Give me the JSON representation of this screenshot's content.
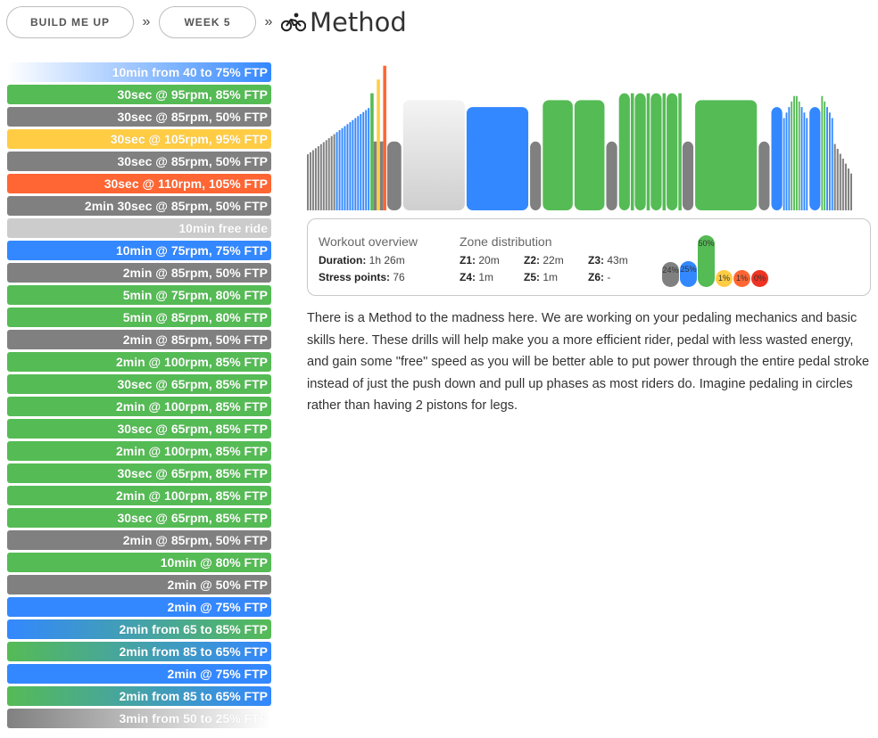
{
  "breadcrumb": {
    "items": [
      "BUILD ME UP",
      "WEEK 5"
    ],
    "separator": "»",
    "title": "Method",
    "title_icon": "cyclist-icon"
  },
  "colors": {
    "gray": "#808080",
    "blue": "#3388ff",
    "green": "#55bb55",
    "yellow": "#ffcc44",
    "orange": "#ff6633",
    "light": "#cccccc"
  },
  "intervals": [
    {
      "label": "10min from 40 to 75% FTP",
      "kind": "grad",
      "from": "#ffffff",
      "to": "#3388ff"
    },
    {
      "label": "30sec @ 95rpm, 85% FTP",
      "kind": "solid",
      "color": "#55bb55"
    },
    {
      "label": "30sec @ 85rpm, 50% FTP",
      "kind": "solid",
      "color": "#808080"
    },
    {
      "label": "30sec @ 105rpm, 95% FTP",
      "kind": "solid",
      "color": "#ffcc44"
    },
    {
      "label": "30sec @ 85rpm, 50% FTP",
      "kind": "solid",
      "color": "#808080"
    },
    {
      "label": "30sec @ 110rpm, 105% FTP",
      "kind": "solid",
      "color": "#ff6633"
    },
    {
      "label": "2min 30sec @ 85rpm, 50% FTP",
      "kind": "solid",
      "color": "#808080"
    },
    {
      "label": "10min free ride",
      "kind": "solid",
      "color": "#cccccc"
    },
    {
      "label": "10min @ 75rpm, 75% FTP",
      "kind": "solid",
      "color": "#3388ff"
    },
    {
      "label": "2min @ 85rpm, 50% FTP",
      "kind": "solid",
      "color": "#808080"
    },
    {
      "label": "5min @ 75rpm, 80% FTP",
      "kind": "solid",
      "color": "#55bb55"
    },
    {
      "label": "5min @ 85rpm, 80% FTP",
      "kind": "solid",
      "color": "#55bb55"
    },
    {
      "label": "2min @ 85rpm, 50% FTP",
      "kind": "solid",
      "color": "#808080"
    },
    {
      "label": "2min @ 100rpm, 85% FTP",
      "kind": "solid",
      "color": "#55bb55"
    },
    {
      "label": "30sec @ 65rpm, 85% FTP",
      "kind": "solid",
      "color": "#55bb55"
    },
    {
      "label": "2min @ 100rpm, 85% FTP",
      "kind": "solid",
      "color": "#55bb55"
    },
    {
      "label": "30sec @ 65rpm, 85% FTP",
      "kind": "solid",
      "color": "#55bb55"
    },
    {
      "label": "2min @ 100rpm, 85% FTP",
      "kind": "solid",
      "color": "#55bb55"
    },
    {
      "label": "30sec @ 65rpm, 85% FTP",
      "kind": "solid",
      "color": "#55bb55"
    },
    {
      "label": "2min @ 100rpm, 85% FTP",
      "kind": "solid",
      "color": "#55bb55"
    },
    {
      "label": "30sec @ 65rpm, 85% FTP",
      "kind": "solid",
      "color": "#55bb55"
    },
    {
      "label": "2min @ 85rpm, 50% FTP",
      "kind": "solid",
      "color": "#808080"
    },
    {
      "label": "10min @ 80% FTP",
      "kind": "solid",
      "color": "#55bb55"
    },
    {
      "label": "2min @ 50% FTP",
      "kind": "solid",
      "color": "#808080"
    },
    {
      "label": "2min @ 75% FTP",
      "kind": "solid",
      "color": "#3388ff"
    },
    {
      "label": "2min from 65 to 85% FTP",
      "kind": "grad",
      "from": "#3388ff",
      "to": "#55bb55"
    },
    {
      "label": "2min from 85 to 65% FTP",
      "kind": "grad",
      "from": "#55bb55",
      "to": "#3388ff"
    },
    {
      "label": "2min @ 75% FTP",
      "kind": "solid",
      "color": "#3388ff"
    },
    {
      "label": "2min from 85 to 65% FTP",
      "kind": "grad",
      "from": "#55bb55",
      "to": "#3388ff"
    },
    {
      "label": "3min from 50 to 25% FTP",
      "kind": "grad",
      "from": "#808080",
      "to": "#ffffff"
    }
  ],
  "chart_data": {
    "type": "bar",
    "x_unit": "seconds",
    "y_unit": "% FTP",
    "ylim": [
      0,
      110
    ],
    "segments": [
      {
        "dur": 600,
        "start": 40,
        "end": 75
      },
      {
        "dur": 30,
        "start": 85,
        "end": 85,
        "color": "#55bb55"
      },
      {
        "dur": 30,
        "start": 50,
        "end": 50,
        "color": "#808080"
      },
      {
        "dur": 30,
        "start": 95,
        "end": 95,
        "color": "#ffcc44"
      },
      {
        "dur": 30,
        "start": 50,
        "end": 50,
        "color": "#808080"
      },
      {
        "dur": 30,
        "start": 105,
        "end": 105,
        "color": "#ff6633"
      },
      {
        "dur": 150,
        "start": 50,
        "end": 50,
        "color": "#808080"
      },
      {
        "dur": 600,
        "start": 80,
        "end": 80,
        "color": "freeride"
      },
      {
        "dur": 600,
        "start": 75,
        "end": 75,
        "color": "#3388ff"
      },
      {
        "dur": 120,
        "start": 50,
        "end": 50,
        "color": "#808080"
      },
      {
        "dur": 300,
        "start": 80,
        "end": 80,
        "color": "#55bb55"
      },
      {
        "dur": 300,
        "start": 80,
        "end": 80,
        "color": "#55bb55"
      },
      {
        "dur": 120,
        "start": 50,
        "end": 50,
        "color": "#808080"
      },
      {
        "dur": 120,
        "start": 85,
        "end": 85,
        "color": "#55bb55"
      },
      {
        "dur": 30,
        "start": 85,
        "end": 85,
        "color": "#55bb55"
      },
      {
        "dur": 120,
        "start": 85,
        "end": 85,
        "color": "#55bb55"
      },
      {
        "dur": 30,
        "start": 85,
        "end": 85,
        "color": "#55bb55"
      },
      {
        "dur": 120,
        "start": 85,
        "end": 85,
        "color": "#55bb55"
      },
      {
        "dur": 30,
        "start": 85,
        "end": 85,
        "color": "#55bb55"
      },
      {
        "dur": 120,
        "start": 85,
        "end": 85,
        "color": "#55bb55"
      },
      {
        "dur": 30,
        "start": 85,
        "end": 85,
        "color": "#55bb55"
      },
      {
        "dur": 120,
        "start": 50,
        "end": 50,
        "color": "#808080"
      },
      {
        "dur": 600,
        "start": 80,
        "end": 80,
        "color": "#55bb55"
      },
      {
        "dur": 120,
        "start": 50,
        "end": 50,
        "color": "#808080"
      },
      {
        "dur": 120,
        "start": 75,
        "end": 75,
        "color": "#3388ff"
      },
      {
        "dur": 120,
        "start": 65,
        "end": 85
      },
      {
        "dur": 120,
        "start": 85,
        "end": 65
      },
      {
        "dur": 120,
        "start": 75,
        "end": 75,
        "color": "#3388ff"
      },
      {
        "dur": 120,
        "start": 85,
        "end": 65
      },
      {
        "dur": 180,
        "start": 50,
        "end": 25
      }
    ]
  },
  "overview": {
    "heading": "Workout overview",
    "duration_label": "Duration:",
    "duration_value": "1h 26m",
    "stress_label": "Stress points:",
    "stress_value": "76"
  },
  "zones": {
    "heading": "Zone distribution",
    "items": [
      {
        "label": "Z1:",
        "value": "20m"
      },
      {
        "label": "Z2:",
        "value": "22m"
      },
      {
        "label": "Z3:",
        "value": "43m"
      },
      {
        "label": "Z4:",
        "value": "1m"
      },
      {
        "label": "Z5:",
        "value": "1m"
      },
      {
        "label": "Z6:",
        "value": "-"
      }
    ],
    "bars": [
      {
        "pct": "24%",
        "value": 24,
        "color": "#808080"
      },
      {
        "pct": "25%",
        "value": 25,
        "color": "#3388ff"
      },
      {
        "pct": "50%",
        "value": 50,
        "color": "#55bb55"
      },
      {
        "pct": "1%",
        "value": 1,
        "color": "#ffcc44"
      },
      {
        "pct": "1%",
        "value": 1,
        "color": "#ff6633"
      },
      {
        "pct": "0%",
        "value": 0,
        "color": "#ee3322"
      }
    ]
  },
  "description": "There is a Method to the madness here. We are working on your pedaling mechanics and basic skills here. These drills will help make you a more efficient rider, pedal with less wasted energy, and gain some \"free\" speed as you will be better able to put power through the entire pedal stroke instead of just the push down and pull up phases as most riders do. Imagine pedaling in circles rather than having 2 pistons for legs."
}
